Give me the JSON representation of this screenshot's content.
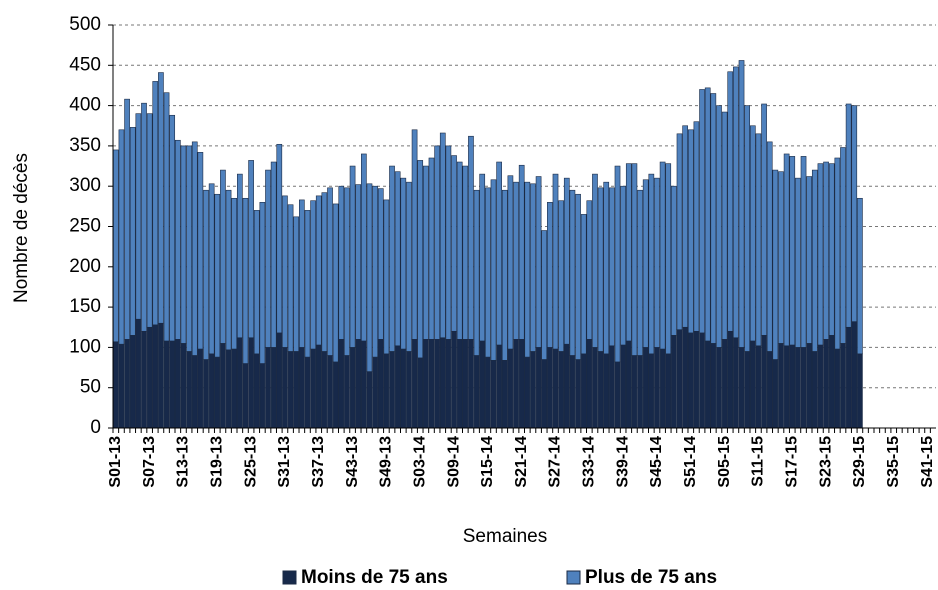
{
  "chart_data": {
    "type": "stacked-bar",
    "y_label": "Nombre de décès",
    "x_label": "Semaines",
    "categories": [
      "S01-13",
      null,
      null,
      null,
      null,
      null,
      "S07-13",
      null,
      null,
      null,
      null,
      null,
      "S13-13",
      null,
      null,
      null,
      null,
      null,
      "S19-13",
      null,
      null,
      null,
      null,
      null,
      "S25-13",
      null,
      null,
      null,
      null,
      null,
      "S31-13",
      null,
      null,
      null,
      null,
      null,
      "S37-13",
      null,
      null,
      null,
      null,
      null,
      "S43-13",
      null,
      null,
      null,
      null,
      null,
      "S49-13",
      null,
      null,
      null,
      null,
      null,
      "S03-14",
      null,
      null,
      null,
      null,
      null,
      "S09-14",
      null,
      null,
      null,
      null,
      null,
      "S15-14",
      null,
      null,
      null,
      null,
      null,
      "S21-14",
      null,
      null,
      null,
      null,
      null,
      "S27-14",
      null,
      null,
      null,
      null,
      null,
      "S33-14",
      null,
      null,
      null,
      null,
      null,
      "S39-14",
      null,
      null,
      null,
      null,
      null,
      "S45-14",
      null,
      null,
      null,
      null,
      null,
      "S51-14",
      null,
      null,
      null,
      null,
      null,
      "S05-15",
      null,
      null,
      null,
      null,
      null,
      "S11-15",
      null,
      null,
      null,
      null,
      null,
      "S17-15",
      null,
      null,
      null,
      null,
      null,
      "S23-15",
      null,
      null,
      null,
      null,
      null,
      "S29-15",
      null,
      null,
      null,
      null,
      null,
      "S35-15",
      null,
      null,
      null,
      null,
      null,
      "S41-15",
      null
    ],
    "series": [
      {
        "name": "Moins de 75 ans",
        "color": "#17294a",
        "values": [
          107,
          104,
          110,
          115,
          135,
          120,
          125,
          128,
          130,
          108,
          108,
          110,
          105,
          95,
          90,
          98,
          85,
          92,
          88,
          105,
          97,
          98,
          112,
          80,
          112,
          92,
          80,
          100,
          100,
          118,
          100,
          95,
          95,
          100,
          88,
          98,
          103,
          95,
          90,
          82,
          110,
          90,
          100,
          110,
          108,
          70,
          88,
          110,
          92,
          95,
          102,
          98,
          95,
          110,
          87,
          110,
          110,
          110,
          112,
          110,
          120,
          110,
          110,
          110,
          90,
          108,
          88,
          84,
          103,
          84,
          98,
          110,
          110,
          88,
          95,
          100,
          85,
          100,
          98,
          95,
          104,
          90,
          85,
          92,
          110,
          100,
          95,
          92,
          102,
          82,
          103,
          108,
          90,
          90,
          100,
          92,
          100,
          98,
          92,
          115,
          122,
          125,
          118,
          120,
          118,
          108,
          105,
          100,
          110,
          120,
          112,
          100,
          95,
          108,
          102,
          115,
          95,
          85,
          105,
          102,
          103,
          100,
          100,
          105,
          95,
          103,
          110,
          115,
          98,
          105,
          125,
          132,
          92,
          null,
          null,
          null,
          null,
          null,
          null,
          null,
          null,
          null,
          null,
          null,
          null,
          null
        ]
      },
      {
        "name": "Plus de 75 ans",
        "color": "#4f81bd",
        "values": [
          238,
          266,
          298,
          258,
          255,
          283,
          265,
          302,
          311,
          308,
          280,
          247,
          245,
          255,
          265,
          244,
          210,
          211,
          202,
          215,
          198,
          187,
          203,
          205,
          220,
          178,
          200,
          220,
          230,
          234,
          188,
          182,
          167,
          183,
          182,
          184,
          185,
          197,
          208,
          196,
          190,
          208,
          225,
          192,
          232,
          233,
          212,
          187,
          191,
          230,
          216,
          212,
          210,
          260,
          245,
          215,
          225,
          240,
          254,
          240,
          218,
          220,
          215,
          252,
          205,
          207,
          210,
          224,
          227,
          211,
          215,
          195,
          216,
          217,
          208,
          212,
          160,
          180,
          217,
          187,
          206,
          205,
          205,
          173,
          172,
          215,
          203,
          213,
          196,
          243,
          197,
          220,
          238,
          205,
          208,
          223,
          210,
          232,
          236,
          185,
          243,
          250,
          252,
          260,
          302,
          314,
          310,
          300,
          282,
          322,
          336,
          356,
          305,
          267,
          263,
          287,
          260,
          235,
          213,
          238,
          234,
          210,
          237,
          207,
          225,
          225,
          220,
          213,
          237,
          243,
          277,
          268,
          193,
          null,
          null,
          null,
          null,
          null,
          null,
          null,
          null,
          null,
          null,
          null,
          null,
          null
        ]
      }
    ],
    "ylim": [
      0,
      500
    ],
    "yticks": [
      0,
      50,
      100,
      150,
      200,
      250,
      300,
      350,
      400,
      450,
      500
    ],
    "grid": true,
    "legend": "bottom"
  }
}
